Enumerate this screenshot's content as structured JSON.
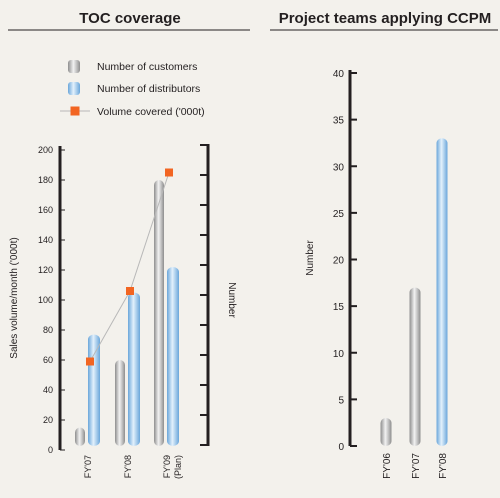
{
  "chart_data": [
    {
      "type": "bar",
      "title": "TOC coverage",
      "categories": [
        "FY'07",
        "FY'08",
        "FY'09"
      ],
      "category_sublabels": [
        "",
        "",
        "(Plan)"
      ],
      "ylabel": "Sales volume/month ('000t)",
      "y2label": "Number",
      "ylim": [
        0,
        200
      ],
      "yticks": [
        0,
        20,
        40,
        60,
        80,
        100,
        120,
        140,
        160,
        180,
        200
      ],
      "series": [
        {
          "name": "Number of customers",
          "type": "bar",
          "color": "#b4b4b4",
          "values": [
            15,
            60,
            180
          ]
        },
        {
          "name": "Number of distributors",
          "type": "bar",
          "color": "#8fc0e8",
          "values": [
            77,
            105,
            122
          ]
        },
        {
          "name": "Volume covered ('000t)",
          "type": "line",
          "color": "#f26522",
          "values": [
            59,
            106,
            185
          ]
        }
      ]
    },
    {
      "type": "bar",
      "title": "Project teams applying CCPM",
      "categories": [
        "FY'06",
        "FY'07",
        "FY'08"
      ],
      "ylabel": "Number",
      "ylim": [
        0,
        40
      ],
      "yticks": [
        0,
        5,
        10,
        15,
        20,
        25,
        30,
        35,
        40
      ],
      "values": [
        3,
        17,
        33
      ],
      "colors": [
        "#b4b4b4",
        "#b4b4b4",
        "#8fc0e8"
      ]
    }
  ],
  "colors": {
    "background": "#f3f1ec",
    "axis": "#231f20",
    "gray_bar": "#b4b4b4",
    "blue_bar": "#8fc0e8",
    "marker": "#f26522",
    "line": "#b8b8b8"
  }
}
